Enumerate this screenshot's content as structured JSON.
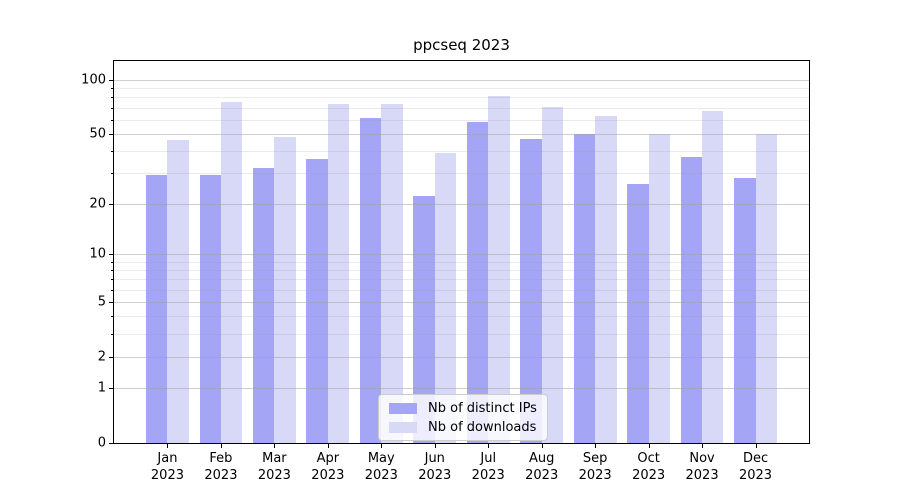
{
  "window": {
    "title": "ppcseq 2023"
  },
  "chart_data": {
    "type": "bar",
    "title": "ppcseq 2023",
    "categories": [
      "Jan 2023",
      "Feb 2023",
      "Mar 2023",
      "Apr 2023",
      "May 2023",
      "Jun 2023",
      "Jul 2023",
      "Aug 2023",
      "Sep 2023",
      "Oct 2023",
      "Nov 2023",
      "Dec 2023"
    ],
    "series": [
      {
        "name": "Nb of distinct IPs",
        "color": "#a5a5f6",
        "values": [
          29,
          29,
          32,
          36,
          61,
          22,
          58,
          47,
          50,
          26,
          37,
          28
        ]
      },
      {
        "name": "Nb of downloads",
        "color": "#d8d8f7",
        "values": [
          46,
          75,
          48,
          73,
          73,
          39,
          81,
          71,
          63,
          50,
          67,
          50
        ]
      }
    ],
    "yscale": "log1p",
    "ylim": [
      0,
      127.6
    ],
    "xlim": [
      -1,
      12
    ],
    "yticks": [
      0,
      1,
      2,
      5,
      10,
      20,
      50,
      100
    ],
    "minor_yticks": [
      3,
      4,
      6,
      7,
      8,
      9,
      30,
      40,
      60,
      70,
      80,
      90
    ],
    "bar_width": 0.4,
    "grid": true,
    "legend_position": "lower center"
  },
  "colors": {
    "background": "#ffffff",
    "spine": "#000000",
    "text": "#000000",
    "grid_major": "rgba(160,160,160,0.5)",
    "grid_minor": "rgba(160,160,160,0.22)",
    "series_distinct_ips": "#a5a5f6",
    "series_downloads": "#d8d8f7",
    "legend_border": "#cccccc",
    "legend_background": "rgba(255,255,255,0.8)"
  }
}
